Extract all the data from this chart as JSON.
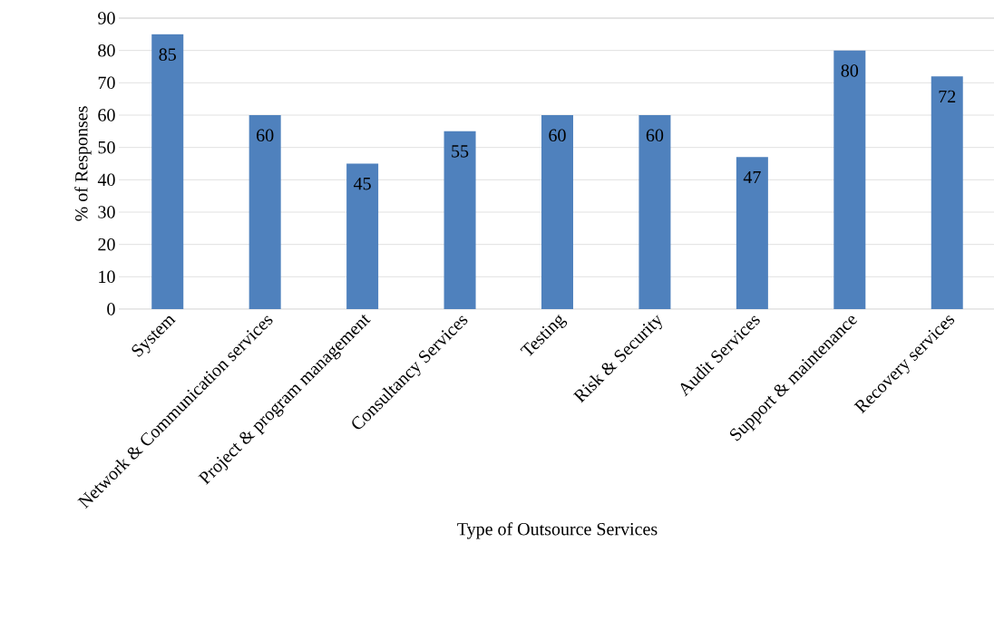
{
  "chart_data": {
    "type": "bar",
    "xlabel": "Type of Outsource Services",
    "ylabel": "% of Responses",
    "categories": [
      "System",
      "Network & Communication services",
      "Project & program management",
      "Consultancy Services",
      "Testing",
      "Risk & Security",
      "Audit Services",
      "Support & maintenance",
      "Recovery services"
    ],
    "values": [
      85,
      60,
      45,
      55,
      60,
      60,
      47,
      80,
      72
    ],
    "color": "#4f81bd",
    "ylim": [
      0,
      90
    ],
    "yticks": [
      0,
      10,
      20,
      30,
      40,
      50,
      60,
      70,
      80,
      90
    ],
    "grid": "y",
    "data_labels": true
  }
}
